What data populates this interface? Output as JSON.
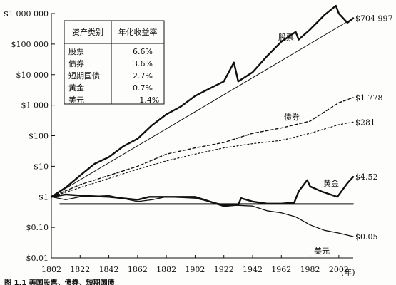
{
  "chart_data": {
    "type": "line",
    "title": "",
    "xlabel": "",
    "ylabel": "",
    "y_scale": "log",
    "ylim": [
      0.01,
      1000000
    ],
    "xlim": [
      1802,
      2012
    ],
    "x_ticks": [
      1802,
      1822,
      1842,
      1862,
      1882,
      1902,
      1922,
      1942,
      1962,
      1982,
      2002
    ],
    "x_unit": "(年)",
    "y_ticks": [
      {
        "value": 1000000,
        "label": "$1 000 000"
      },
      {
        "value": 100000,
        "label": "$100 000"
      },
      {
        "value": 10000,
        "label": "$10 000"
      },
      {
        "value": 1000,
        "label": "$1 000"
      },
      {
        "value": 100,
        "label": "$100"
      },
      {
        "value": 10,
        "label": "$10"
      },
      {
        "value": 1,
        "label": "$1"
      },
      {
        "value": 0.1,
        "label": "$0.10"
      },
      {
        "value": 0.01,
        "label": "$0.01"
      }
    ],
    "grid": false,
    "legend": {
      "placement": "top-left",
      "headers": [
        "资产类别",
        "年化收益率"
      ],
      "rows": [
        [
          "股票",
          "6.6%"
        ],
        [
          "债券",
          "3.6%"
        ],
        [
          "短期国债",
          "2.7%"
        ],
        [
          "黄金",
          "0.7%"
        ],
        [
          "美元",
          "−1.4%"
        ]
      ]
    },
    "series": [
      {
        "name": "股票",
        "end_label": "$704 997",
        "x": [
          1802,
          1812,
          1822,
          1832,
          1842,
          1852,
          1862,
          1872,
          1882,
          1892,
          1902,
          1912,
          1922,
          1929,
          1932,
          1942,
          1952,
          1962,
          1972,
          1974,
          1982,
          1992,
          2000,
          2002,
          2008,
          2012
        ],
        "y": [
          1,
          2,
          5,
          12,
          20,
          45,
          80,
          220,
          500,
          900,
          2000,
          3500,
          6000,
          25000,
          6000,
          12000,
          40000,
          120000,
          250000,
          140000,
          300000,
          900000,
          1800000,
          1000000,
          500000,
          704997
        ]
      },
      {
        "name": "",
        "x": [
          1802,
          2012
        ],
        "y": [
          1,
          704997
        ]
      },
      {
        "name": "债券",
        "end_label": "$1 778",
        "x": [
          1802,
          1822,
          1842,
          1862,
          1882,
          1902,
          1922,
          1942,
          1962,
          1982,
          2002,
          2012
        ],
        "y": [
          1,
          2.5,
          5,
          10,
          25,
          40,
          60,
          120,
          180,
          300,
          1200,
          1778
        ]
      },
      {
        "name": "",
        "end_label": "$281",
        "x": [
          1802,
          1822,
          1842,
          1862,
          1882,
          1902,
          1922,
          1942,
          1962,
          1982,
          2002,
          2012
        ],
        "y": [
          1,
          2,
          4,
          8,
          15,
          25,
          40,
          55,
          70,
          120,
          230,
          281
        ]
      },
      {
        "name": "黄金",
        "end_label": "$4.52",
        "x": [
          1802,
          1812,
          1822,
          1842,
          1862,
          1870,
          1882,
          1902,
          1922,
          1932,
          1934,
          1942,
          1952,
          1962,
          1971,
          1974,
          1980,
          1982,
          1990,
          2001,
          2008,
          2012
        ],
        "y": [
          1,
          1.2,
          1.1,
          1.0,
          0.8,
          1.0,
          1.0,
          1.0,
          0.5,
          0.55,
          0.9,
          0.7,
          0.6,
          0.6,
          0.65,
          1.5,
          3.5,
          2.2,
          1.5,
          1.0,
          2.8,
          4.52
        ]
      },
      {
        "name": "",
        "x": [
          1808,
          2012
        ],
        "y": [
          0.58,
          0.58
        ]
      },
      {
        "name": "美元",
        "end_label": "$0.05",
        "x": [
          1802,
          1812,
          1822,
          1842,
          1862,
          1872,
          1882,
          1902,
          1922,
          1942,
          1952,
          1962,
          1972,
          1982,
          1992,
          2002,
          2012
        ],
        "y": [
          1,
          0.8,
          1.0,
          1.1,
          0.7,
          0.8,
          1.0,
          0.9,
          0.55,
          0.5,
          0.35,
          0.3,
          0.22,
          0.12,
          0.08,
          0.065,
          0.05
        ]
      }
    ],
    "caption": "图 1.1  美国股票、债券、短期国债"
  }
}
